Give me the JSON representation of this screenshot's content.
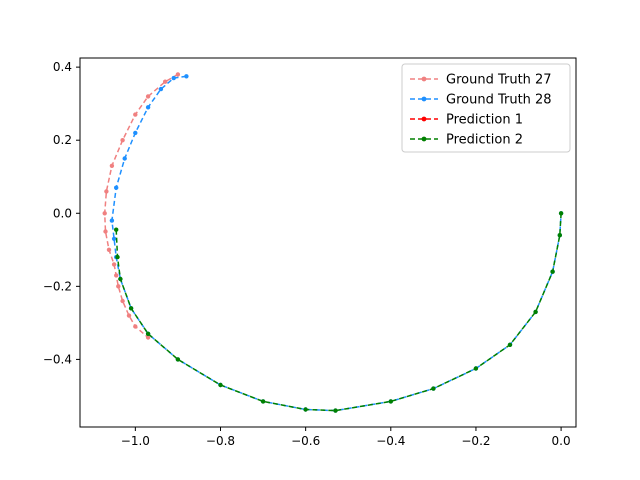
{
  "chart_data": {
    "type": "line",
    "title": "",
    "xlabel": "",
    "ylabel": "",
    "xlim": [
      -1.13,
      0.035
    ],
    "ylim": [
      -0.585,
      0.425
    ],
    "xticks": [
      -1.0,
      -0.8,
      -0.6,
      -0.4,
      -0.2,
      0.0
    ],
    "yticks": [
      -0.4,
      -0.2,
      0.0,
      0.2,
      0.4
    ],
    "xtick_labels": [
      "−1.0",
      "−0.8",
      "−0.6",
      "−0.4",
      "−0.2",
      "0.0"
    ],
    "ytick_labels": [
      "−0.4",
      "−0.2",
      "0.0",
      "0.2",
      "0.4"
    ],
    "grid": false,
    "legend_position": "top-right",
    "series": [
      {
        "name": "Ground Truth 27",
        "color": "#f08080",
        "style": "dashed",
        "marker": "dot",
        "x": [
          -0.9,
          -0.93,
          -0.97,
          -1.0,
          -1.03,
          -1.055,
          -1.068,
          -1.072,
          -1.07,
          -1.062,
          -1.05,
          -1.045,
          -1.04,
          -1.03,
          -1.015,
          -1.0,
          -0.97
        ],
        "y": [
          0.38,
          0.36,
          0.32,
          0.27,
          0.2,
          0.13,
          0.06,
          0.0,
          -0.05,
          -0.1,
          -0.14,
          -0.17,
          -0.2,
          -0.24,
          -0.28,
          -0.31,
          -0.34
        ]
      },
      {
        "name": "Ground Truth 28",
        "color": "#1e90ff",
        "style": "dashed",
        "marker": "dot",
        "x": [
          -0.88,
          -0.91,
          -0.94,
          -0.97,
          -1.0,
          -1.025,
          -1.045,
          -1.055,
          -1.05,
          -1.045,
          -1.035,
          -1.01,
          -0.97,
          -0.9,
          -0.8,
          -0.7,
          -0.6,
          -0.53,
          -0.4,
          -0.3,
          -0.2,
          -0.12,
          -0.06,
          -0.02,
          -0.003,
          0.0
        ],
        "y": [
          0.375,
          0.37,
          0.34,
          0.29,
          0.22,
          0.15,
          0.07,
          -0.02,
          -0.07,
          -0.12,
          -0.18,
          -0.26,
          -0.33,
          -0.4,
          -0.47,
          -0.515,
          -0.537,
          -0.54,
          -0.515,
          -0.48,
          -0.425,
          -0.36,
          -0.27,
          -0.16,
          -0.06,
          0.0
        ]
      },
      {
        "name": "Prediction 1",
        "color": "#ff0000",
        "style": "dashed",
        "marker": "dot",
        "x": [],
        "y": []
      },
      {
        "name": "Prediction 2",
        "color": "#008000",
        "style": "dashed",
        "marker": "dot",
        "x": [
          -1.045,
          -1.042,
          -1.035,
          -1.01,
          -0.97,
          -0.9,
          -0.8,
          -0.7,
          -0.6,
          -0.53,
          -0.4,
          -0.3,
          -0.2,
          -0.12,
          -0.06,
          -0.02,
          -0.003,
          0.0
        ],
        "y": [
          -0.045,
          -0.12,
          -0.18,
          -0.26,
          -0.33,
          -0.4,
          -0.47,
          -0.515,
          -0.537,
          -0.54,
          -0.515,
          -0.48,
          -0.425,
          -0.36,
          -0.27,
          -0.16,
          -0.06,
          0.0
        ]
      }
    ]
  }
}
